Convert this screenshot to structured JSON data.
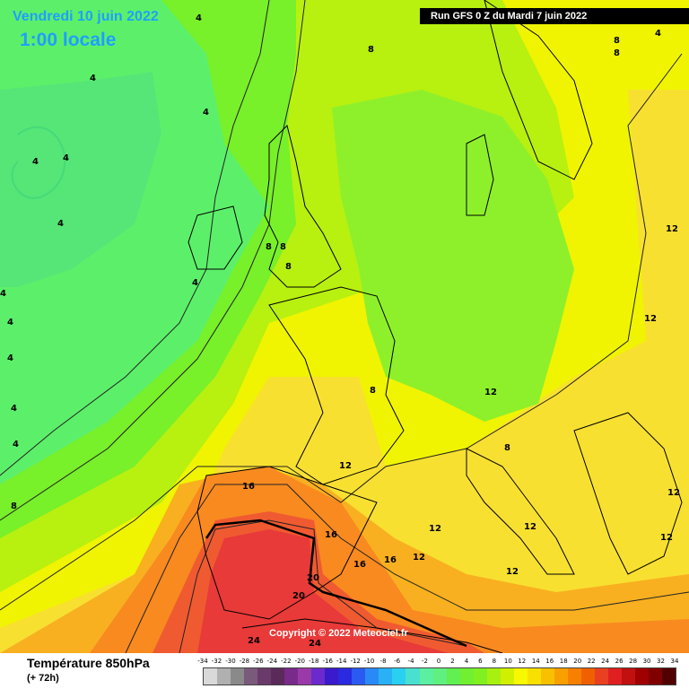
{
  "header": {
    "date": "Vendredi 10 juin 2022",
    "time": "1:00 locale",
    "run": "Run GFS 0 Z du Mardi 7 juin 2022"
  },
  "footer": {
    "title": "Température 850hPa",
    "subtitle": "(+ 72h)",
    "copyright": "Copyright © 2022 Meteociel.fr"
  },
  "colorbar": {
    "ticks": [
      "-34",
      "-32",
      "-30",
      "-28",
      "-26",
      "-24",
      "-22",
      "-20",
      "-18",
      "-16",
      "-14",
      "-12",
      "-10",
      "-8",
      "-6",
      "-4",
      "-2",
      "0",
      "2",
      "4",
      "6",
      "8",
      "10",
      "12",
      "14",
      "16",
      "18",
      "20",
      "22",
      "24",
      "26",
      "28",
      "30",
      "32",
      "34"
    ],
    "colors": [
      "#d9d9d9",
      "#b0b0b0",
      "#8a8a8a",
      "#7a5a7a",
      "#6a3a6a",
      "#5a2a5a",
      "#7a2a8a",
      "#9a3aa8",
      "#6a2acc",
      "#3a1acc",
      "#2a2ae0",
      "#2a5af0",
      "#2a8af5",
      "#2ab0f5",
      "#2ad0f0",
      "#4ae0d0",
      "#5af0a0",
      "#60f080",
      "#60f050",
      "#70f030",
      "#80f020",
      "#a8f010",
      "#d0f000",
      "#f8f800",
      "#f8e000",
      "#f8c000",
      "#f8a000",
      "#f88000",
      "#f06000",
      "#e84020",
      "#e02020",
      "#c01010",
      "#a00000",
      "#800000",
      "#500000"
    ]
  },
  "contour_labels": [
    "4",
    "4",
    "4",
    "4",
    "4",
    "4",
    "4",
    "4",
    "4",
    "4",
    "4",
    "4",
    "4",
    "8",
    "8",
    "8",
    "8",
    "8",
    "8",
    "8",
    "8",
    "8",
    "12",
    "12",
    "12",
    "12",
    "12",
    "12",
    "12",
    "12",
    "12",
    "12",
    "16",
    "16",
    "16",
    "16",
    "20",
    "20",
    "24",
    "24"
  ]
}
